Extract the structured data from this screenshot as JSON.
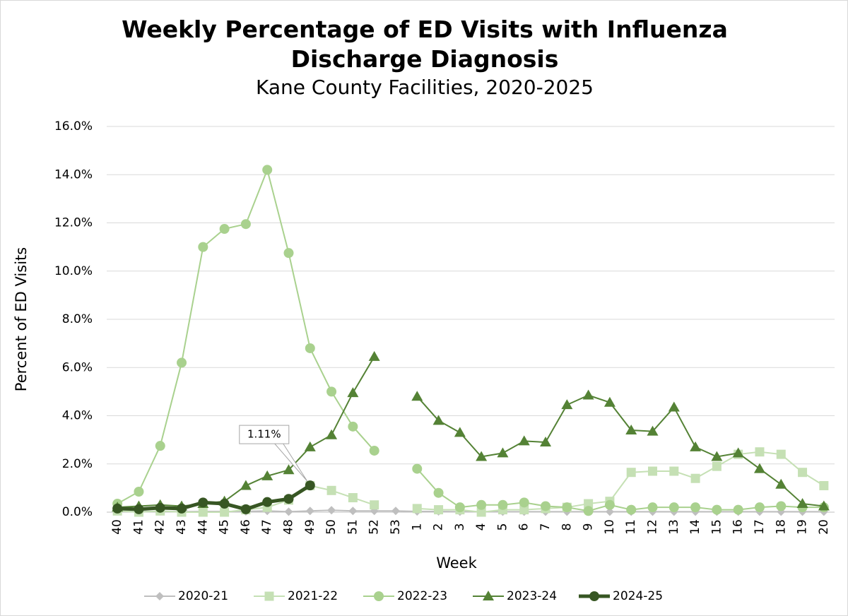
{
  "chart_data": {
    "type": "line",
    "title": "Weekly Percentage of ED Visits with Influenza Discharge Diagnosis",
    "subtitle": "Kane County Facilities, 2020-2025",
    "x_label": "Week",
    "y_label": "Percent of ED Visits",
    "categories": [
      "40",
      "41",
      "42",
      "43",
      "44",
      "45",
      "46",
      "47",
      "48",
      "49",
      "50",
      "51",
      "52",
      "53",
      "1",
      "2",
      "3",
      "4",
      "5",
      "6",
      "7",
      "8",
      "9",
      "10",
      "11",
      "12",
      "13",
      "14",
      "15",
      "16",
      "17",
      "18",
      "19",
      "20"
    ],
    "ylim": [
      0,
      16
    ],
    "yticks": [
      {
        "value": 0,
        "label": "0.0%"
      },
      {
        "value": 2,
        "label": "2.0%"
      },
      {
        "value": 4,
        "label": "4.0%"
      },
      {
        "value": 6,
        "label": "6.0%"
      },
      {
        "value": 8,
        "label": "8.0%"
      },
      {
        "value": 10,
        "label": "10.0%"
      },
      {
        "value": 12,
        "label": "12.0%"
      },
      {
        "value": 14,
        "label": "14.0%"
      },
      {
        "value": 16,
        "label": "16.0%"
      }
    ],
    "grid": true,
    "legend": "bottom",
    "series": [
      {
        "name": "2020-21",
        "color": "#bfbfbf",
        "marker": "diamond",
        "width": 2,
        "values": [
          0.05,
          0.03,
          0.03,
          0.02,
          0.03,
          0.03,
          0.03,
          0.05,
          0.02,
          0.05,
          0.08,
          0.05,
          0.05,
          0.05,
          0.03,
          0.03,
          0.02,
          0.02,
          0.02,
          0.02,
          0.02,
          0.02,
          0.02,
          0.02,
          0.02,
          0.02,
          0.02,
          0.02,
          0.02,
          0.02,
          0.02,
          0.02,
          0.02,
          0.02
        ]
      },
      {
        "name": "2021-22",
        "color": "#c5e0b4",
        "marker": "square",
        "width": 2,
        "values": [
          0.05,
          0.0,
          0.05,
          0.0,
          0.0,
          0.0,
          0.1,
          0.2,
          0.5,
          1.1,
          0.9,
          0.6,
          0.3,
          null,
          0.15,
          0.1,
          0.1,
          0.0,
          0.1,
          0.1,
          0.15,
          0.2,
          0.35,
          0.45,
          1.65,
          1.7,
          1.7,
          1.4,
          1.9,
          2.4,
          2.5,
          2.4,
          1.65,
          1.1
        ]
      },
      {
        "name": "2022-23",
        "color": "#a9d18e",
        "marker": "circle",
        "width": 2,
        "values": [
          0.35,
          0.85,
          2.75,
          6.2,
          11.0,
          11.75,
          11.95,
          14.2,
          10.75,
          6.8,
          5.0,
          3.55,
          2.55,
          null,
          1.8,
          0.8,
          0.2,
          0.3,
          0.3,
          0.4,
          0.25,
          0.2,
          0.05,
          0.3,
          0.1,
          0.2,
          0.2,
          0.2,
          0.1,
          0.1,
          0.2,
          0.25,
          0.2,
          0.2
        ]
      },
      {
        "name": "2023-24",
        "color": "#548235",
        "marker": "triangle",
        "width": 2,
        "values": [
          0.2,
          0.25,
          0.3,
          0.25,
          0.35,
          0.45,
          1.1,
          1.5,
          1.75,
          2.7,
          3.2,
          4.95,
          6.45,
          null,
          4.8,
          3.8,
          3.3,
          2.3,
          2.45,
          2.95,
          2.9,
          4.45,
          4.85,
          4.55,
          3.4,
          3.35,
          4.35,
          2.7,
          2.3,
          2.45,
          1.8,
          1.15,
          0.35,
          0.25
        ]
      },
      {
        "name": "2024-25",
        "color": "#375623",
        "marker": "circle",
        "width": 5,
        "values": [
          0.15,
          0.12,
          0.18,
          0.15,
          0.4,
          0.35,
          0.12,
          0.42,
          0.55,
          1.11,
          null,
          null,
          null,
          null,
          null,
          null,
          null,
          null,
          null,
          null,
          null,
          null,
          null,
          null,
          null,
          null,
          null,
          null,
          null,
          null,
          null,
          null,
          null,
          null
        ],
        "value_labels": [
          null,
          null,
          null,
          null,
          null,
          null,
          null,
          null,
          null,
          "1.11%",
          null,
          null,
          null,
          null,
          null,
          null,
          null,
          null,
          null,
          null,
          null,
          null,
          null,
          null,
          null,
          null,
          null,
          null,
          null,
          null,
          null,
          null,
          null,
          null
        ]
      }
    ]
  }
}
